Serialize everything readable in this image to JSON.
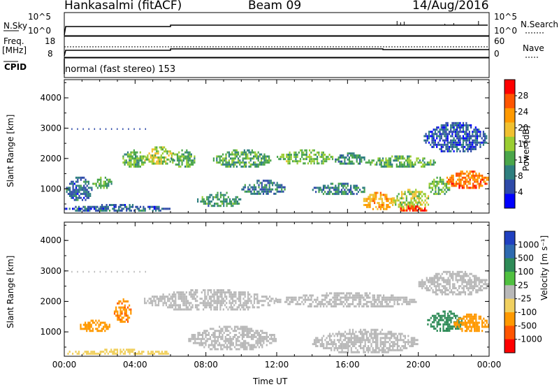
{
  "header": {
    "site": "Hankasalmi (fitACF)",
    "beam": "Beam 09",
    "date": "14/Aug/2016"
  },
  "noise_panel": {
    "left_label": "N.Sky",
    "left_ticks": [
      "10^5",
      "10^0"
    ],
    "right_label": "N.Search",
    "right_ticks": [
      "10^5",
      "10^0"
    ]
  },
  "freq_panel": {
    "left_label_1": "Freq.",
    "left_label_2": "[MHz]",
    "left_ticks": [
      "18",
      "8"
    ],
    "right_label": "Nave",
    "right_ticks": [
      "60",
      "0"
    ]
  },
  "cpid_panel": {
    "label": "CPID",
    "text": "normal (fast stereo) 153"
  },
  "colors": {
    "power_scale": [
      "#0000ff",
      "#2e4aa8",
      "#2f7f7f",
      "#4aa64a",
      "#9acd32",
      "#f0c030",
      "#ff9900",
      "#ff5500",
      "#ff0000"
    ],
    "velocity_scale": [
      "#2040c0",
      "#2e6ab0",
      "#2e8b57",
      "#50c040",
      "#b8b8b8",
      "#f0d060",
      "#ff9900",
      "#ff5500",
      "#ff0000"
    ]
  },
  "chart_data": [
    {
      "type": "heatmap",
      "title": "Power",
      "xlabel": "",
      "ylabel": "Slant Range [km]",
      "x_ticks": [
        "00:00",
        "04:00",
        "08:00",
        "12:00",
        "16:00",
        "20:00",
        "00:00"
      ],
      "y_ticks": [
        "1000",
        "2000",
        "3000",
        "4000"
      ],
      "ylim": [
        200,
        4600
      ],
      "colorbar": {
        "label": "Power [dB]",
        "ticks": [
          "4",
          "8",
          "12",
          "16",
          "20",
          "24",
          "28"
        ],
        "range": [
          0,
          32
        ]
      },
      "bands": [
        {
          "t0": 0.1,
          "t1": 1.6,
          "r_lo": 600,
          "r_hi": 1400,
          "v": 7
        },
        {
          "t0": 1.5,
          "t1": 2.8,
          "r_lo": 1000,
          "r_hi": 1400,
          "v": 12
        },
        {
          "t0": 3.2,
          "t1": 4.6,
          "r_lo": 1700,
          "r_hi": 2300,
          "v": 14
        },
        {
          "t0": 4.5,
          "t1": 6.2,
          "r_lo": 1800,
          "r_hi": 2400,
          "v": 16
        },
        {
          "t0": 6.0,
          "t1": 7.4,
          "r_lo": 1700,
          "r_hi": 2300,
          "v": 13
        },
        {
          "t0": 8.4,
          "t1": 11.7,
          "r_lo": 1700,
          "r_hi": 2300,
          "v": 12
        },
        {
          "t0": 12.0,
          "t1": 15.2,
          "r_lo": 1800,
          "r_hi": 2300,
          "v": 14
        },
        {
          "t0": 15.2,
          "t1": 17.0,
          "r_lo": 1800,
          "r_hi": 2200,
          "v": 10
        },
        {
          "t0": 17.0,
          "t1": 21.0,
          "r_lo": 1700,
          "r_hi": 2100,
          "v": 13
        },
        {
          "t0": 20.3,
          "t1": 23.9,
          "r_lo": 2200,
          "r_hi": 3200,
          "v": 6
        },
        {
          "t0": 7.5,
          "t1": 10.0,
          "r_lo": 400,
          "r_hi": 900,
          "v": 11
        },
        {
          "t0": 10.0,
          "t1": 12.5,
          "r_lo": 800,
          "r_hi": 1300,
          "v": 8
        },
        {
          "t0": 14.0,
          "t1": 17.0,
          "r_lo": 800,
          "r_hi": 1200,
          "v": 9
        },
        {
          "t0": 16.8,
          "t1": 18.6,
          "r_lo": 300,
          "r_hi": 900,
          "v": 22
        },
        {
          "t0": 18.5,
          "t1": 20.7,
          "r_lo": 300,
          "r_hi": 1000,
          "v": 17
        },
        {
          "t0": 20.5,
          "t1": 21.8,
          "r_lo": 800,
          "r_hi": 1400,
          "v": 14
        },
        {
          "t0": 21.5,
          "t1": 24.0,
          "r_lo": 1000,
          "r_hi": 1600,
          "v": 25
        },
        {
          "t0": 18.8,
          "t1": 20.5,
          "r_lo": 250,
          "r_hi": 450,
          "v": 28
        },
        {
          "t0": 0.0,
          "t1": 6.0,
          "r_lo": 250,
          "r_hi": 500,
          "v": 7
        }
      ]
    },
    {
      "type": "heatmap",
      "title": "Velocity",
      "xlabel": "Time UT",
      "ylabel": "Slant Range [km]",
      "x_ticks": [
        "00:00",
        "04:00",
        "08:00",
        "12:00",
        "16:00",
        "20:00",
        "00:00"
      ],
      "y_ticks": [
        "1000",
        "2000",
        "3000",
        "4000"
      ],
      "ylim": [
        200,
        4600
      ],
      "colorbar": {
        "label": "Velocity [m s⁻¹]",
        "ticks": [
          "1000",
          "500",
          "100",
          "25",
          "-25",
          "-100",
          "-500",
          "-1000"
        ]
      },
      "bands": [
        {
          "t0": 0.8,
          "t1": 2.6,
          "r_lo": 1000,
          "r_hi": 1400,
          "v": -250
        },
        {
          "t0": 2.8,
          "t1": 3.8,
          "r_lo": 1300,
          "r_hi": 2100,
          "v": -400
        },
        {
          "t0": 4.5,
          "t1": 12.0,
          "r_lo": 1700,
          "r_hi": 2400,
          "v": 0
        },
        {
          "t0": 12.0,
          "t1": 20.0,
          "r_lo": 1800,
          "r_hi": 2300,
          "v": 0
        },
        {
          "t0": 20.0,
          "t1": 24.0,
          "r_lo": 2200,
          "r_hi": 3000,
          "v": 0
        },
        {
          "t0": 7.0,
          "t1": 12.0,
          "r_lo": 400,
          "r_hi": 1200,
          "v": 0
        },
        {
          "t0": 14.0,
          "t1": 20.0,
          "r_lo": 300,
          "r_hi": 1100,
          "v": 0
        },
        {
          "t0": 20.5,
          "t1": 22.5,
          "r_lo": 1000,
          "r_hi": 1700,
          "v": 250
        },
        {
          "t0": 22.0,
          "t1": 24.0,
          "r_lo": 1000,
          "r_hi": 1600,
          "v": -300
        },
        {
          "t0": 0.0,
          "t1": 6.0,
          "r_lo": 250,
          "r_hi": 450,
          "v": -50
        }
      ]
    }
  ]
}
